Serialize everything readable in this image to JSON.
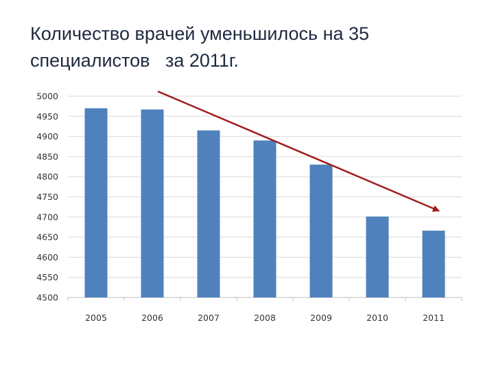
{
  "slide": {
    "title_line1": "Количество врачей уменьшилось на 35",
    "title_line2": "специалистов   за 2011г."
  },
  "chart_data": {
    "type": "bar",
    "title": "Количество врачей уменьшилось на 35 специалистов   за 2011г.",
    "categories": [
      "2005",
      "2006",
      "2007",
      "2008",
      "2009",
      "2010",
      "2011"
    ],
    "values": [
      4970,
      4967,
      4915,
      4890,
      4830,
      4701,
      4666
    ],
    "ylim": [
      4500,
      5000
    ],
    "yticks": [
      5000,
      4950,
      4900,
      4850,
      4800,
      4750,
      4700,
      4650,
      4600,
      4550,
      4500
    ],
    "grid": true,
    "legend": "none",
    "bar_color": "#4f81bd",
    "annotation": {
      "type": "trend-arrow",
      "color": "#a01c1c",
      "direction": "downward"
    }
  }
}
